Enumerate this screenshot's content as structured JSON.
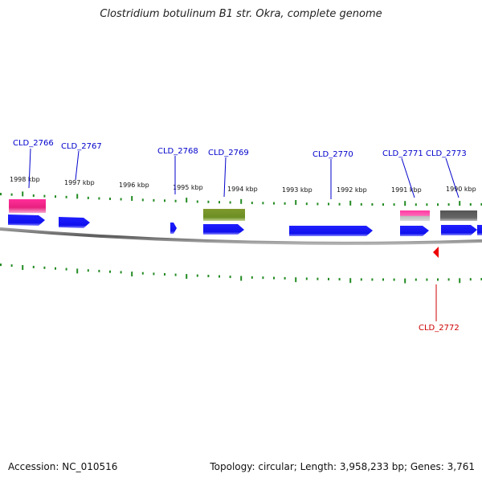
{
  "title": "Clostridium botulinum B1 str. Okra, complete genome",
  "footer": {
    "accession": "Accession: NC_010516",
    "topology": "Topology: circular; Length: 3,958,233 bp; Genes: 3,761"
  },
  "colors": {
    "forward_gene": "#1a1aff",
    "pink_feature": "#ff3aa0",
    "olive_feature": "#6b8e23",
    "gray_feature": "#666666",
    "backbone": "#808080",
    "ticks": "#228b22",
    "label_blue": "#0000cc",
    "label_red": "#cc0000"
  },
  "scale_labels": [
    "1998 kbp",
    "1997 kbp",
    "1996 kbp",
    "1995 kbp",
    "1994 kbp",
    "1993 kbp",
    "1992 kbp",
    "1991 kbp",
    "1990 kbp"
  ],
  "gene_labels": [
    {
      "name": "CLD_2766",
      "color": "blue"
    },
    {
      "name": "CLD_2767",
      "color": "blue"
    },
    {
      "name": "CLD_2768",
      "color": "blue"
    },
    {
      "name": "CLD_2769",
      "color": "blue"
    },
    {
      "name": "CLD_2770",
      "color": "blue"
    },
    {
      "name": "CLD_2771",
      "color": "blue"
    },
    {
      "name": "CLD_2773",
      "color": "blue"
    },
    {
      "name": "CLD_2772",
      "color": "red"
    }
  ]
}
